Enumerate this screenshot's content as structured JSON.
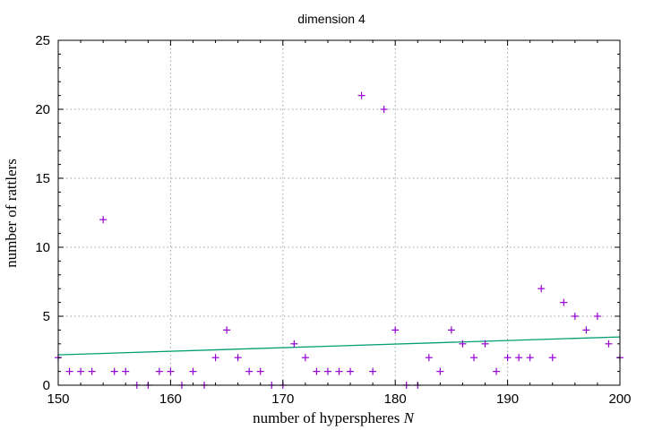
{
  "chart_data": {
    "type": "scatter",
    "title": "dimension 4",
    "xlabel": "number of hyperspheres",
    "xlabel_var": "N",
    "ylabel": "number of rattlers",
    "xlim": [
      150,
      200
    ],
    "ylim": [
      0,
      25
    ],
    "xticks": [
      150,
      160,
      170,
      180,
      190,
      200
    ],
    "yticks": [
      0,
      5,
      10,
      15,
      20,
      25
    ],
    "grid": true,
    "point_color": "#9400d3",
    "fit_color": "#009e73",
    "x": [
      150,
      151,
      152,
      153,
      154,
      155,
      156,
      157,
      158,
      159,
      160,
      161,
      162,
      163,
      164,
      165,
      166,
      167,
      168,
      169,
      170,
      171,
      172,
      173,
      174,
      175,
      176,
      177,
      178,
      179,
      180,
      181,
      182,
      183,
      184,
      185,
      186,
      187,
      188,
      189,
      190,
      191,
      192,
      193,
      194,
      195,
      196,
      197,
      198,
      199,
      200
    ],
    "y": [
      2,
      1,
      1,
      1,
      12,
      1,
      1,
      0,
      0,
      1,
      1,
      0,
      1,
      0,
      2,
      4,
      2,
      1,
      1,
      0,
      0,
      3,
      2,
      1,
      1,
      1,
      1,
      21,
      1,
      20,
      4,
      0,
      0,
      2,
      1,
      4,
      3,
      2,
      3,
      1,
      2,
      2,
      2,
      7,
      2,
      6,
      5,
      4,
      5,
      3,
      2
    ],
    "fit": {
      "x": [
        150,
        200
      ],
      "y": [
        2.2,
        3.5
      ]
    }
  }
}
